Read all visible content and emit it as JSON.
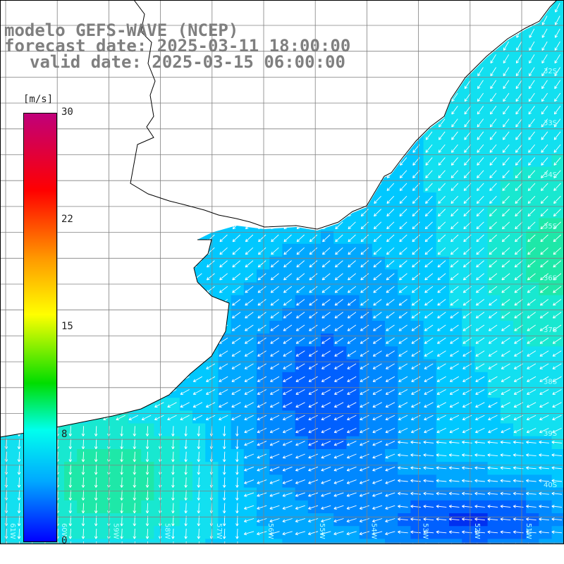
{
  "header": {
    "line1": "modelo GEFS-WAVE (NCEP)",
    "line2": "forecast date: 2025-03-11 18:00:00",
    "line3": "valid date: 2025-03-15 06:00:00"
  },
  "colorbar": {
    "unit": "[m/s]",
    "ticks": [
      "30",
      "22",
      "15",
      "8",
      "0"
    ],
    "colors": [
      "#c0007a",
      "#ff0000",
      "#ff9a00",
      "#ffff00",
      "#00dd00",
      "#00ffee",
      "#00a8ff",
      "#0000ff"
    ]
  },
  "map": {
    "lat_labels": [
      "32S",
      "33S",
      "34S",
      "35S",
      "36S",
      "37S",
      "38S",
      "39S",
      "40S"
    ],
    "lon_labels": [
      "61W",
      "60W",
      "59W",
      "58W",
      "57W",
      "56W",
      "55W",
      "54W",
      "53W",
      "52W",
      "51W"
    ],
    "colors": {
      "land": "#ffffff",
      "coast": "#000000",
      "grid": "#808080",
      "arrow": "#ffffff"
    }
  }
}
